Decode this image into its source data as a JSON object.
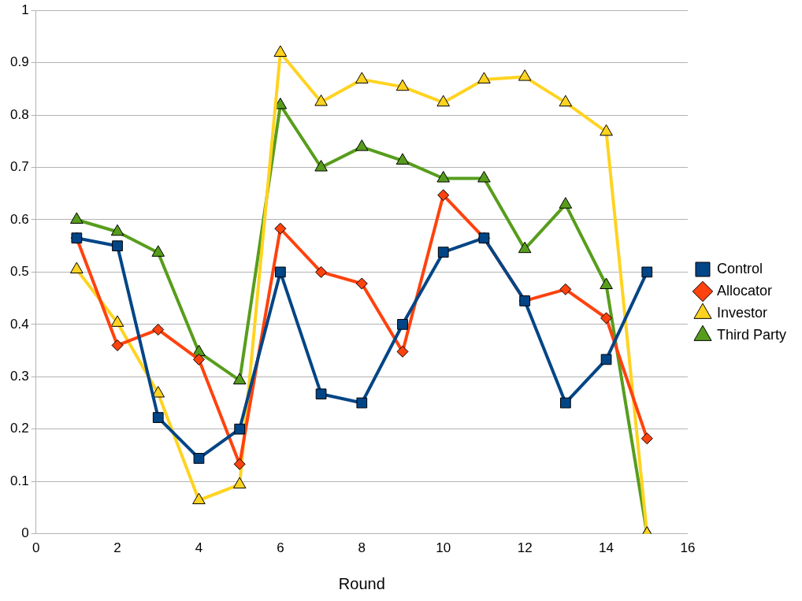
{
  "chart_data": {
    "type": "line",
    "xlabel": "Round",
    "x": [
      1,
      2,
      3,
      4,
      5,
      6,
      7,
      8,
      9,
      10,
      11,
      12,
      13,
      14,
      15
    ],
    "xlim": [
      0,
      16
    ],
    "xticks": [
      0,
      2,
      4,
      6,
      8,
      10,
      12,
      14,
      16
    ],
    "ylim": [
      0,
      1
    ],
    "yticks": [
      0,
      0.1,
      0.2,
      0.3,
      0.4,
      0.5,
      0.6,
      0.7,
      0.8,
      0.9,
      1
    ],
    "grid": "y",
    "legend": "right",
    "line_style": "solid",
    "series": [
      {
        "name": "Control",
        "color": "#004586",
        "marker": "square",
        "values": [
          0.565,
          0.55,
          0.222,
          0.144,
          0.2,
          0.5,
          0.267,
          0.25,
          0.4,
          0.538,
          0.565,
          0.445,
          0.25,
          0.333,
          0.5
        ]
      },
      {
        "name": "Allocator",
        "color": "#ff420e",
        "marker": "diamond",
        "values": [
          0.565,
          0.36,
          0.39,
          0.333,
          0.133,
          0.583,
          0.5,
          0.478,
          0.348,
          0.647,
          0.565,
          0.445,
          0.467,
          0.412,
          0.182
        ]
      },
      {
        "name": "Investor",
        "color": "#ffd320",
        "marker": "triangle",
        "values": [
          0.505,
          0.403,
          0.268,
          0.064,
          0.094,
          0.919,
          0.825,
          0.868,
          0.854,
          0.824,
          0.868,
          0.873,
          0.824,
          0.768,
          0
        ]
      },
      {
        "name": "Third Party",
        "color": "#579d1c",
        "marker": "triangle",
        "values": [
          0.6,
          0.577,
          0.537,
          0.347,
          0.293,
          0.819,
          0.7,
          0.739,
          0.713,
          0.679,
          0.679,
          0.544,
          0.629,
          0.475,
          0
        ]
      }
    ]
  }
}
